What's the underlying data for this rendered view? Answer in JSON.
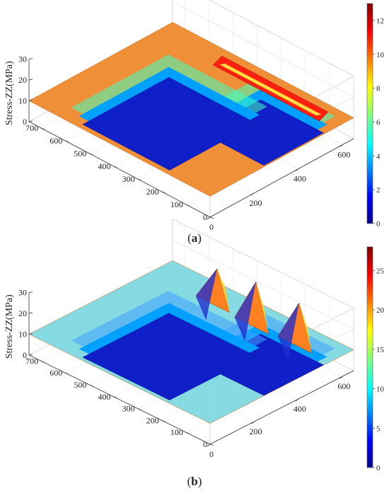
{
  "chart_data": [
    {
      "panel_label": "a",
      "type": "surface",
      "zlabel": "Stress-ZZ(MPa)",
      "x_axis": {
        "ticks": [
          0,
          100,
          200,
          300,
          400,
          500,
          600,
          700
        ],
        "lim": [
          0,
          750
        ]
      },
      "y_axis": {
        "ticks": [
          0,
          200,
          400,
          600
        ],
        "lim": [
          0,
          650
        ]
      },
      "z_axis": {
        "ticks": [
          0,
          10,
          20,
          30
        ],
        "lim": [
          0,
          30
        ]
      },
      "colorbar": {
        "ticks": [
          0,
          2,
          4,
          6,
          8,
          10,
          12
        ],
        "lim": [
          0,
          13
        ],
        "colormap": "jet"
      },
      "surface_description": {
        "base_stress": 10,
        "low_regions": [
          {
            "x": [
              70,
              330
            ],
            "y": [
              320,
              590
            ],
            "value": 0
          },
          {
            "x": [
              250,
              610
            ],
            "y": [
              90,
              480
            ],
            "value": 0
          }
        ],
        "high_ridge": {
          "x": [
            60,
            500
          ],
          "y": [
            560,
            600
          ],
          "value": 12
        }
      }
    },
    {
      "panel_label": "b",
      "type": "surface",
      "zlabel": "Stress-ZZ(MPa)",
      "x_axis": {
        "ticks": [
          0,
          100,
          200,
          300,
          400,
          500,
          600,
          700
        ],
        "lim": [
          0,
          750
        ]
      },
      "y_axis": {
        "ticks": [
          0,
          200,
          400,
          600
        ],
        "lim": [
          0,
          650
        ]
      },
      "z_axis": {
        "ticks": [
          0,
          10,
          20,
          30
        ],
        "lim": [
          0,
          30
        ]
      },
      "colorbar": {
        "ticks": [
          0,
          5,
          10,
          15,
          20,
          25
        ],
        "lim": [
          0,
          28
        ],
        "colormap": "jet"
      },
      "surface_description": {
        "base_stress": 10,
        "low_regions": [
          {
            "x": [
              70,
              330
            ],
            "y": [
              320,
              590
            ],
            "value": 0
          },
          {
            "x": [
              250,
              610
            ],
            "y": [
              90,
              480
            ],
            "value": 0
          }
        ],
        "peaks": [
          {
            "x": 180,
            "y": 600,
            "value": 25
          },
          {
            "x": 350,
            "y": 590,
            "value": 26
          },
          {
            "x": 520,
            "y": 600,
            "value": 22
          }
        ]
      }
    }
  ]
}
